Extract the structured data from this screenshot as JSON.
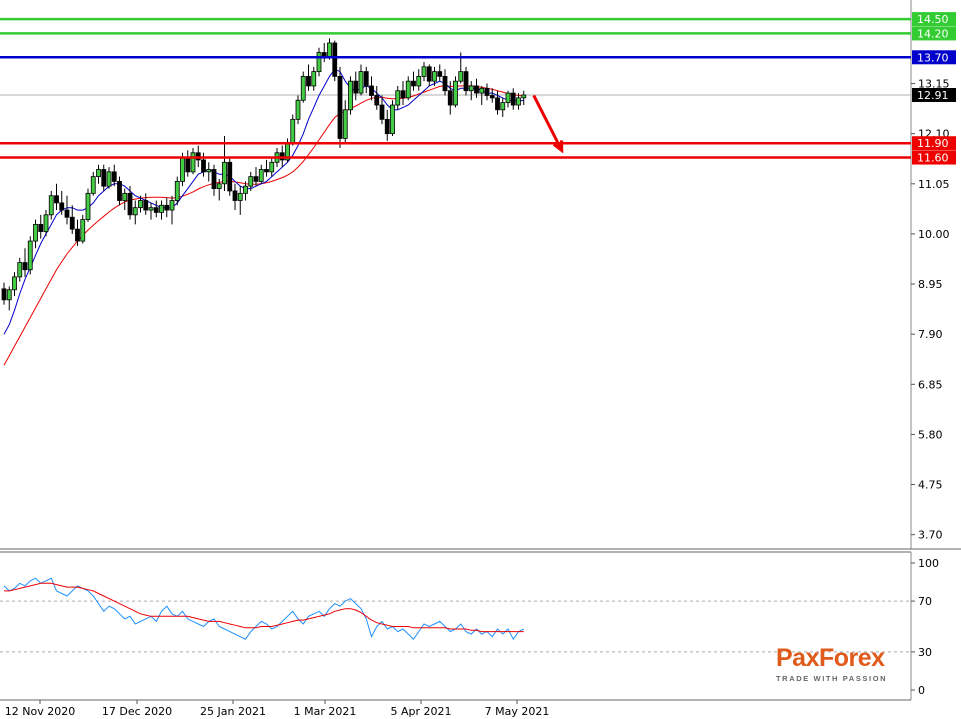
{
  "brand": {
    "logo_word": "PaxForex",
    "tagline": "TRADE WITH PASSION",
    "accent": "#e05a1c"
  },
  "price_panel": {
    "current_price": "12.91",
    "y_ticks": [
      "13.15",
      "12.10",
      "11.05",
      "10.00",
      "8.95",
      "7.90",
      "6.85",
      "5.80",
      "4.75",
      "3.70"
    ],
    "levels": [
      {
        "label": "14.50",
        "value": 14.5,
        "color": "#33cc33"
      },
      {
        "label": "14.20",
        "value": 14.2,
        "color": "#33cc33"
      },
      {
        "label": "13.70",
        "value": 13.7,
        "color": "#0000cc"
      },
      {
        "label": "11.90",
        "value": 11.9,
        "color": "#ee0000"
      },
      {
        "label": "11.60",
        "value": 11.6,
        "color": "#ee0000"
      }
    ],
    "forecast_arrow": {
      "from": 12.9,
      "to": 11.75,
      "color": "#ee0000"
    }
  },
  "oscillator_panel": {
    "y_ticks": [
      "100",
      "70",
      "30",
      "0"
    ],
    "dashed_levels": [
      70,
      30
    ]
  },
  "x_axis": {
    "labels": [
      "12 Nov 2020",
      "17 Dec 2020",
      "25 Jan 2021",
      "1 Mar 2021",
      "5 Apr 2021",
      "7 May 2021"
    ]
  },
  "chart_data": [
    {
      "type": "candlestick",
      "ylim": [
        3.4,
        14.9
      ],
      "grid": false,
      "candles_ohlc": [
        [
          8.85,
          8.98,
          8.52,
          8.62
        ],
        [
          8.62,
          8.9,
          8.4,
          8.83
        ],
        [
          8.83,
          9.2,
          8.7,
          9.1
        ],
        [
          9.1,
          9.5,
          9.0,
          9.4
        ],
        [
          9.4,
          9.7,
          9.1,
          9.25
        ],
        [
          9.25,
          9.95,
          9.15,
          9.85
        ],
        [
          9.85,
          10.3,
          9.7,
          10.2
        ],
        [
          10.2,
          10.4,
          9.9,
          10.05
        ],
        [
          10.05,
          10.5,
          9.95,
          10.4
        ],
        [
          10.4,
          10.9,
          10.3,
          10.8
        ],
        [
          10.8,
          11.05,
          10.5,
          10.65
        ],
        [
          10.65,
          10.9,
          10.4,
          10.5
        ],
        [
          10.5,
          10.8,
          10.2,
          10.35
        ],
        [
          10.35,
          10.6,
          10.0,
          10.1
        ],
        [
          10.1,
          10.3,
          9.75,
          9.85
        ],
        [
          9.85,
          10.4,
          9.8,
          10.3
        ],
        [
          10.3,
          10.95,
          10.25,
          10.85
        ],
        [
          10.85,
          11.3,
          10.8,
          11.2
        ],
        [
          11.2,
          11.45,
          11.05,
          11.35
        ],
        [
          11.35,
          11.45,
          10.9,
          11.0
        ],
        [
          11.0,
          11.4,
          10.95,
          11.3
        ],
        [
          11.3,
          11.45,
          11.0,
          11.1
        ],
        [
          11.1,
          11.2,
          10.6,
          10.7
        ],
        [
          10.7,
          10.95,
          10.5,
          10.85
        ],
        [
          10.85,
          11.0,
          10.3,
          10.4
        ],
        [
          10.4,
          10.7,
          10.2,
          10.55
        ],
        [
          10.55,
          10.8,
          10.45,
          10.7
        ],
        [
          10.7,
          10.85,
          10.4,
          10.5
        ],
        [
          10.5,
          10.65,
          10.3,
          10.55
        ],
        [
          10.55,
          10.7,
          10.35,
          10.45
        ],
        [
          10.45,
          10.7,
          10.3,
          10.6
        ],
        [
          10.6,
          10.75,
          10.35,
          10.5
        ],
        [
          10.5,
          10.8,
          10.2,
          10.7
        ],
        [
          10.7,
          11.2,
          10.6,
          11.1
        ],
        [
          11.1,
          11.7,
          11.0,
          11.6
        ],
        [
          11.6,
          11.75,
          11.2,
          11.3
        ],
        [
          11.3,
          11.8,
          11.25,
          11.7
        ],
        [
          11.7,
          11.85,
          11.4,
          11.55
        ],
        [
          11.55,
          11.7,
          11.2,
          11.3
        ],
        [
          11.3,
          11.5,
          11.1,
          11.35
        ],
        [
          11.35,
          11.45,
          10.8,
          10.95
        ],
        [
          10.95,
          11.15,
          10.7,
          11.05
        ],
        [
          11.05,
          12.05,
          10.9,
          11.5
        ],
        [
          11.5,
          11.6,
          10.8,
          10.9
        ],
        [
          10.9,
          11.05,
          10.5,
          10.7
        ],
        [
          10.7,
          11.0,
          10.4,
          10.85
        ],
        [
          10.85,
          11.1,
          10.7,
          11.0
        ],
        [
          11.0,
          11.3,
          10.9,
          11.2
        ],
        [
          11.2,
          11.4,
          11.0,
          11.1
        ],
        [
          11.1,
          11.45,
          11.05,
          11.35
        ],
        [
          11.35,
          11.55,
          11.2,
          11.3
        ],
        [
          11.3,
          11.6,
          11.2,
          11.5
        ],
        [
          11.5,
          11.8,
          11.4,
          11.7
        ],
        [
          11.7,
          11.85,
          11.4,
          11.55
        ],
        [
          11.55,
          12.0,
          11.5,
          11.9
        ],
        [
          11.9,
          12.5,
          11.85,
          12.4
        ],
        [
          12.4,
          12.9,
          12.3,
          12.8
        ],
        [
          12.8,
          13.4,
          12.75,
          13.3
        ],
        [
          13.3,
          13.55,
          13.0,
          13.1
        ],
        [
          13.1,
          13.5,
          13.0,
          13.4
        ],
        [
          13.4,
          13.9,
          13.3,
          13.8
        ],
        [
          13.8,
          14.0,
          13.6,
          13.7
        ],
        [
          13.7,
          14.1,
          13.65,
          14.0
        ],
        [
          14.0,
          14.05,
          13.2,
          13.3
        ],
        [
          13.3,
          13.5,
          11.8,
          12.0
        ],
        [
          12.0,
          12.8,
          11.9,
          12.6
        ],
        [
          12.6,
          13.3,
          12.5,
          13.2
        ],
        [
          13.2,
          13.4,
          12.8,
          12.95
        ],
        [
          12.95,
          13.55,
          12.9,
          13.4
        ],
        [
          13.4,
          13.5,
          12.95,
          13.1
        ],
        [
          13.1,
          13.3,
          12.8,
          12.9
        ],
        [
          12.9,
          13.1,
          12.6,
          12.7
        ],
        [
          12.7,
          12.9,
          12.3,
          12.4
        ],
        [
          12.4,
          12.6,
          11.95,
          12.1
        ],
        [
          12.1,
          12.8,
          12.05,
          12.7
        ],
        [
          12.7,
          13.1,
          12.6,
          13.0
        ],
        [
          13.0,
          13.2,
          12.7,
          12.85
        ],
        [
          12.85,
          13.3,
          12.8,
          13.2
        ],
        [
          13.2,
          13.4,
          13.0,
          13.1
        ],
        [
          13.1,
          13.45,
          13.0,
          13.3
        ],
        [
          13.3,
          13.6,
          13.2,
          13.5
        ],
        [
          13.5,
          13.55,
          13.1,
          13.2
        ],
        [
          13.2,
          13.5,
          13.1,
          13.4
        ],
        [
          13.4,
          13.55,
          13.2,
          13.3
        ],
        [
          13.3,
          13.45,
          12.9,
          13.0
        ],
        [
          13.0,
          13.2,
          12.5,
          12.7
        ],
        [
          12.7,
          13.3,
          12.65,
          13.2
        ],
        [
          13.2,
          13.8,
          13.15,
          13.4
        ],
        [
          13.4,
          13.5,
          12.9,
          13.0
        ],
        [
          13.0,
          13.2,
          12.8,
          13.1
        ],
        [
          13.1,
          13.25,
          12.85,
          12.95
        ],
        [
          12.95,
          13.1,
          12.7,
          13.05
        ],
        [
          13.05,
          13.15,
          12.8,
          12.9
        ],
        [
          12.9,
          13.05,
          12.75,
          12.85
        ],
        [
          12.85,
          13.0,
          12.5,
          12.6
        ],
        [
          12.6,
          12.85,
          12.45,
          12.75
        ],
        [
          12.75,
          13.0,
          12.65,
          12.95
        ],
        [
          12.95,
          13.05,
          12.6,
          12.7
        ],
        [
          12.7,
          12.95,
          12.6,
          12.85
        ],
        [
          12.85,
          13.0,
          12.7,
          12.91
        ]
      ],
      "ma_fast": [
        7.9,
        8.1,
        8.4,
        8.75,
        9.05,
        9.3,
        9.55,
        9.8,
        10.0,
        10.2,
        10.4,
        10.5,
        10.55,
        10.55,
        10.5,
        10.5,
        10.55,
        10.65,
        10.8,
        10.9,
        11.0,
        11.05,
        11.05,
        11.0,
        10.9,
        10.8,
        10.75,
        10.7,
        10.65,
        10.6,
        10.55,
        10.55,
        10.55,
        10.65,
        10.8,
        10.95,
        11.1,
        11.25,
        11.3,
        11.35,
        11.3,
        11.25,
        11.25,
        11.2,
        11.1,
        11.0,
        10.95,
        10.95,
        11.0,
        11.05,
        11.1,
        11.2,
        11.3,
        11.4,
        11.5,
        11.65,
        11.85,
        12.1,
        12.4,
        12.65,
        12.9,
        13.1,
        13.3,
        13.45,
        13.4,
        13.2,
        13.05,
        13.0,
        13.05,
        13.1,
        13.05,
        12.95,
        12.85,
        12.7,
        12.6,
        12.6,
        12.65,
        12.7,
        12.8,
        12.9,
        13.0,
        13.1,
        13.15,
        13.2,
        13.15,
        13.05,
        13.0,
        13.05,
        13.05,
        13.05,
        13.05,
        13.0,
        12.95,
        12.95,
        12.9,
        12.85,
        12.8,
        12.8,
        12.78,
        12.8
      ],
      "ma_slow": [
        7.25,
        7.45,
        7.65,
        7.85,
        8.05,
        8.25,
        8.45,
        8.65,
        8.85,
        9.05,
        9.25,
        9.42,
        9.58,
        9.72,
        9.85,
        9.97,
        10.08,
        10.18,
        10.28,
        10.37,
        10.46,
        10.54,
        10.61,
        10.67,
        10.71,
        10.73,
        10.75,
        10.76,
        10.77,
        10.77,
        10.77,
        10.76,
        10.75,
        10.76,
        10.79,
        10.83,
        10.88,
        10.94,
        10.99,
        11.03,
        11.06,
        11.08,
        11.1,
        11.1,
        11.09,
        11.07,
        11.05,
        11.04,
        11.04,
        11.05,
        11.07,
        11.1,
        11.14,
        11.18,
        11.23,
        11.3,
        11.4,
        11.52,
        11.66,
        11.81,
        11.97,
        12.13,
        12.29,
        12.44,
        12.52,
        12.57,
        12.63,
        12.68,
        12.74,
        12.8,
        12.84,
        12.86,
        12.86,
        12.84,
        12.83,
        12.83,
        12.84,
        12.86,
        12.89,
        12.93,
        12.97,
        13.01,
        13.05,
        13.09,
        13.1,
        13.09,
        13.09,
        13.1,
        13.1,
        13.1,
        13.09,
        13.07,
        13.05,
        13.03,
        13.0,
        12.97,
        12.94,
        12.92,
        12.9,
        12.89
      ]
    },
    {
      "type": "line",
      "ylim": [
        0,
        100
      ],
      "grid": false,
      "series": [
        {
          "values": [
            82,
            78,
            80,
            84,
            82,
            86,
            88,
            84,
            86,
            88,
            78,
            76,
            74,
            78,
            82,
            80,
            78,
            74,
            68,
            62,
            66,
            64,
            60,
            56,
            58,
            52,
            54,
            56,
            58,
            54,
            62,
            66,
            60,
            58,
            62,
            56,
            54,
            52,
            50,
            54,
            56,
            50,
            48,
            46,
            44,
            42,
            40,
            46,
            50,
            54,
            52,
            48,
            50,
            54,
            58,
            62,
            56,
            52,
            58,
            60,
            62,
            58,
            64,
            68,
            66,
            70,
            72,
            68,
            64,
            56,
            42,
            50,
            54,
            48,
            50,
            46,
            48,
            44,
            40,
            46,
            52,
            50,
            52,
            54,
            50,
            46,
            48,
            52,
            46,
            44,
            48,
            44,
            46,
            42,
            48,
            44,
            48,
            40,
            46,
            48
          ],
          "color": "#1e90ff"
        },
        {
          "values": [
            78,
            78,
            79,
            80,
            81,
            82,
            83,
            84,
            84,
            84,
            83,
            82,
            81,
            81,
            81,
            80,
            79,
            78,
            76,
            74,
            72,
            70,
            68,
            66,
            64,
            62,
            60,
            59,
            58,
            58,
            58,
            58,
            58,
            58,
            58,
            58,
            57,
            56,
            55,
            54,
            54,
            54,
            53,
            52,
            51,
            50,
            49,
            49,
            49,
            50,
            50,
            50,
            51,
            52,
            53,
            54,
            55,
            55,
            56,
            57,
            58,
            59,
            60,
            62,
            63,
            64,
            64,
            63,
            61,
            58,
            55,
            53,
            52,
            51,
            50,
            50,
            50,
            50,
            49,
            49,
            49,
            49,
            49,
            49,
            49,
            48,
            48,
            48,
            48,
            47,
            47,
            46,
            46,
            46,
            46,
            46,
            46,
            46,
            46,
            46
          ],
          "color": "#ee0000"
        }
      ]
    }
  ]
}
